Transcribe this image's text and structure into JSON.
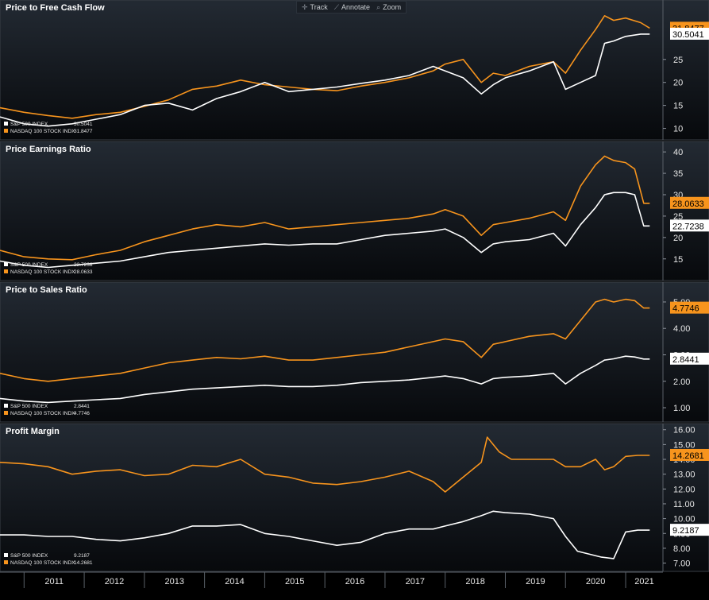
{
  "toolbar": {
    "track": "Track",
    "annotate": "Annotate",
    "zoom": "Zoom"
  },
  "colors": {
    "sp": "#ffffff",
    "ndx": "#f7941d",
    "bg_top": "#232a33",
    "bg_bottom": "#07090c"
  },
  "chart_data": [
    {
      "type": "line",
      "title": "Price to Free Cash Flow",
      "yticks": [
        10,
        15,
        20,
        25
      ],
      "ylim": [
        8.2,
        35.5
      ],
      "legend": [
        {
          "name": "S&P 500 INDEX",
          "value": "30.5041"
        },
        {
          "name": "NASDAQ 100 STOCK INDX",
          "value": "31.8477"
        }
      ],
      "last_values": {
        "ndx": "31.8477",
        "sp": "30.5041"
      },
      "series": [
        {
          "name": "NASDAQ 100 STOCK INDX",
          "color": "ndx",
          "x": [
            2010.6,
            2011.0,
            2011.4,
            2011.8,
            2012.2,
            2012.6,
            2013.0,
            2013.4,
            2013.8,
            2014.2,
            2014.6,
            2015.0,
            2015.4,
            2015.8,
            2016.2,
            2016.6,
            2017.0,
            2017.4,
            2017.8,
            2018.0,
            2018.3,
            2018.6,
            2018.8,
            2019.0,
            2019.4,
            2019.8,
            2020.0,
            2020.25,
            2020.5,
            2020.65,
            2020.8,
            2021.0,
            2021.25,
            2021.4
          ],
          "y": [
            14.5,
            13.5,
            12.8,
            12.2,
            13.0,
            13.5,
            14.8,
            16.2,
            18.5,
            19.2,
            20.5,
            19.5,
            19.0,
            18.5,
            18.2,
            19.2,
            20.0,
            21.0,
            22.5,
            24.0,
            25.0,
            20.0,
            22.0,
            21.5,
            23.5,
            24.5,
            22.0,
            27.0,
            31.5,
            34.5,
            33.5,
            34.0,
            33.0,
            31.8
          ]
        },
        {
          "name": "S&P 500 INDEX",
          "color": "sp",
          "x": [
            2010.6,
            2011.0,
            2011.4,
            2011.8,
            2012.2,
            2012.6,
            2013.0,
            2013.4,
            2013.8,
            2014.2,
            2014.6,
            2015.0,
            2015.4,
            2015.8,
            2016.2,
            2016.6,
            2017.0,
            2017.4,
            2017.8,
            2018.0,
            2018.3,
            2018.6,
            2018.8,
            2019.0,
            2019.4,
            2019.8,
            2020.0,
            2020.25,
            2020.5,
            2020.65,
            2020.8,
            2021.0,
            2021.25,
            2021.4
          ],
          "y": [
            12.5,
            11.0,
            10.5,
            11.0,
            12.0,
            13.0,
            15.0,
            15.5,
            14.0,
            16.5,
            18.0,
            20.0,
            18.0,
            18.5,
            19.0,
            19.8,
            20.5,
            21.5,
            23.5,
            22.5,
            21.0,
            17.5,
            19.5,
            21.0,
            22.5,
            24.5,
            18.5,
            20.0,
            21.5,
            28.5,
            29.0,
            30.0,
            30.5,
            30.5
          ]
        }
      ]
    },
    {
      "type": "line",
      "title": "Price Earnings Ratio",
      "yticks": [
        15,
        20,
        25,
        30,
        35,
        40
      ],
      "ylim": [
        10.5,
        41.7
      ],
      "legend": [
        {
          "name": "S&P 500 INDEX",
          "value": "22.7238"
        },
        {
          "name": "NASDAQ 100 STOCK INDX",
          "value": "28.0633"
        }
      ],
      "last_values": {
        "ndx": "28.0633",
        "sp": "22.7238"
      },
      "series": [
        {
          "name": "NASDAQ 100 STOCK INDX",
          "color": "ndx",
          "x": [
            2010.6,
            2011.0,
            2011.4,
            2011.8,
            2012.2,
            2012.6,
            2013.0,
            2013.4,
            2013.8,
            2014.2,
            2014.6,
            2015.0,
            2015.4,
            2015.8,
            2016.2,
            2016.6,
            2017.0,
            2017.4,
            2017.8,
            2018.0,
            2018.3,
            2018.6,
            2018.8,
            2019.0,
            2019.4,
            2019.8,
            2020.0,
            2020.25,
            2020.5,
            2020.65,
            2020.8,
            2021.0,
            2021.15,
            2021.3,
            2021.4
          ],
          "y": [
            17.0,
            15.5,
            15.0,
            14.8,
            16.0,
            17.0,
            19.0,
            20.5,
            22.0,
            23.0,
            22.5,
            23.5,
            22.0,
            22.5,
            23.0,
            23.5,
            24.0,
            24.5,
            25.5,
            26.5,
            25.0,
            20.5,
            23.0,
            23.5,
            24.5,
            26.0,
            24.0,
            32.0,
            37.0,
            39.0,
            38.0,
            37.5,
            36.0,
            28.0,
            28.0
          ]
        },
        {
          "name": "S&P 500 INDEX",
          "color": "sp",
          "x": [
            2010.6,
            2011.0,
            2011.4,
            2011.8,
            2012.2,
            2012.6,
            2013.0,
            2013.4,
            2013.8,
            2014.2,
            2014.6,
            2015.0,
            2015.4,
            2015.8,
            2016.2,
            2016.6,
            2017.0,
            2017.4,
            2017.8,
            2018.0,
            2018.3,
            2018.6,
            2018.8,
            2019.0,
            2019.4,
            2019.8,
            2020.0,
            2020.25,
            2020.5,
            2020.65,
            2020.8,
            2021.0,
            2021.15,
            2021.3,
            2021.4
          ],
          "y": [
            14.5,
            13.5,
            13.0,
            13.5,
            14.0,
            14.5,
            15.5,
            16.5,
            17.0,
            17.5,
            18.0,
            18.5,
            18.2,
            18.5,
            18.5,
            19.5,
            20.5,
            21.0,
            21.5,
            22.0,
            20.0,
            16.5,
            18.5,
            19.0,
            19.5,
            21.0,
            18.0,
            23.0,
            27.0,
            30.0,
            30.5,
            30.5,
            30.0,
            22.7,
            22.7
          ]
        }
      ]
    },
    {
      "type": "line",
      "title": "Price to Sales Ratio",
      "yticks": [
        "1.00",
        "2.00",
        "3.00",
        "4.00",
        "5.00"
      ],
      "ylim": [
        0.55,
        5.6
      ],
      "legend": [
        {
          "name": "S&P 500 INDEX",
          "value": "2.8441"
        },
        {
          "name": "NASDAQ 100 STOCK INDX",
          "value": "4.7746"
        }
      ],
      "last_values": {
        "ndx": "4.7746",
        "sp": "2.8441"
      },
      "series": [
        {
          "name": "NASDAQ 100 STOCK INDX",
          "color": "ndx",
          "x": [
            2010.6,
            2011.0,
            2011.4,
            2011.8,
            2012.2,
            2012.6,
            2013.0,
            2013.4,
            2013.8,
            2014.2,
            2014.6,
            2015.0,
            2015.4,
            2015.8,
            2016.2,
            2016.6,
            2017.0,
            2017.4,
            2017.8,
            2018.0,
            2018.3,
            2018.6,
            2018.8,
            2019.0,
            2019.4,
            2019.8,
            2020.0,
            2020.25,
            2020.5,
            2020.65,
            2020.8,
            2021.0,
            2021.15,
            2021.3,
            2021.4
          ],
          "y": [
            2.3,
            2.1,
            2.0,
            2.1,
            2.2,
            2.3,
            2.5,
            2.7,
            2.8,
            2.9,
            2.85,
            2.95,
            2.8,
            2.8,
            2.9,
            3.0,
            3.1,
            3.3,
            3.5,
            3.6,
            3.5,
            2.9,
            3.4,
            3.5,
            3.7,
            3.8,
            3.6,
            4.3,
            5.0,
            5.1,
            5.0,
            5.1,
            5.05,
            4.77,
            4.77
          ]
        },
        {
          "name": "S&P 500 INDEX",
          "color": "sp",
          "x": [
            2010.6,
            2011.0,
            2011.4,
            2011.8,
            2012.2,
            2012.6,
            2013.0,
            2013.4,
            2013.8,
            2014.2,
            2014.6,
            2015.0,
            2015.4,
            2015.8,
            2016.2,
            2016.6,
            2017.0,
            2017.4,
            2017.8,
            2018.0,
            2018.3,
            2018.6,
            2018.8,
            2019.0,
            2019.4,
            2019.8,
            2020.0,
            2020.25,
            2020.5,
            2020.65,
            2020.8,
            2021.0,
            2021.15,
            2021.3,
            2021.4
          ],
          "y": [
            1.35,
            1.25,
            1.2,
            1.25,
            1.3,
            1.35,
            1.5,
            1.6,
            1.7,
            1.75,
            1.8,
            1.85,
            1.8,
            1.8,
            1.85,
            1.95,
            2.0,
            2.05,
            2.15,
            2.2,
            2.1,
            1.9,
            2.1,
            2.15,
            2.2,
            2.3,
            1.9,
            2.3,
            2.6,
            2.8,
            2.85,
            2.95,
            2.92,
            2.84,
            2.84
          ]
        }
      ]
    },
    {
      "type": "line",
      "title": "Profit Margin",
      "yticks": [
        "7.00",
        "8.00",
        "9.00",
        "10.00",
        "11.00",
        "12.00",
        "13.00",
        "14.00",
        "15.00",
        "16.00"
      ],
      "ylim": [
        6.6,
        16.2
      ],
      "legend": [
        {
          "name": "S&P 500 INDEX",
          "value": "9.2187"
        },
        {
          "name": "NASDAQ 100 STOCK INDX",
          "value": "14.2681"
        }
      ],
      "last_values": {
        "ndx": "14.2681",
        "sp": "9.2187"
      },
      "series": [
        {
          "name": "NASDAQ 100 STOCK INDX",
          "color": "ndx",
          "x": [
            2010.6,
            2011.0,
            2011.4,
            2011.8,
            2012.2,
            2012.6,
            2013.0,
            2013.4,
            2013.8,
            2014.2,
            2014.6,
            2015.0,
            2015.4,
            2015.8,
            2016.2,
            2016.6,
            2017.0,
            2017.4,
            2017.8,
            2018.0,
            2018.3,
            2018.6,
            2018.7,
            2018.9,
            2019.1,
            2019.4,
            2019.8,
            2020.0,
            2020.25,
            2020.5,
            2020.65,
            2020.8,
            2021.0,
            2021.2,
            2021.4
          ],
          "y": [
            13.8,
            13.7,
            13.5,
            13.0,
            13.2,
            13.3,
            12.9,
            13.0,
            13.6,
            13.5,
            14.0,
            13.0,
            12.8,
            12.4,
            12.3,
            12.5,
            12.8,
            13.2,
            12.5,
            11.8,
            12.8,
            13.8,
            15.5,
            14.5,
            14.0,
            14.0,
            14.0,
            13.5,
            13.5,
            14.0,
            13.3,
            13.5,
            14.2,
            14.27,
            14.27
          ]
        },
        {
          "name": "S&P 500 INDEX",
          "color": "sp",
          "x": [
            2010.6,
            2011.0,
            2011.4,
            2011.8,
            2012.2,
            2012.6,
            2013.0,
            2013.4,
            2013.8,
            2014.2,
            2014.6,
            2015.0,
            2015.4,
            2015.8,
            2016.2,
            2016.6,
            2017.0,
            2017.4,
            2017.8,
            2018.0,
            2018.3,
            2018.6,
            2018.8,
            2019.0,
            2019.4,
            2019.8,
            2020.0,
            2020.2,
            2020.4,
            2020.6,
            2020.8,
            2021.0,
            2021.2,
            2021.4
          ],
          "y": [
            8.9,
            8.9,
            8.8,
            8.8,
            8.6,
            8.5,
            8.7,
            9.0,
            9.5,
            9.5,
            9.6,
            9.0,
            8.8,
            8.5,
            8.2,
            8.4,
            9.0,
            9.3,
            9.3,
            9.5,
            9.8,
            10.2,
            10.5,
            10.4,
            10.3,
            10.0,
            8.8,
            7.8,
            7.6,
            7.4,
            7.3,
            9.1,
            9.22,
            9.22
          ]
        }
      ]
    }
  ],
  "x_axis": {
    "labels": [
      "2011",
      "2012",
      "2013",
      "2014",
      "2015",
      "2016",
      "2017",
      "2018",
      "2019",
      "2020",
      "2021"
    ]
  }
}
